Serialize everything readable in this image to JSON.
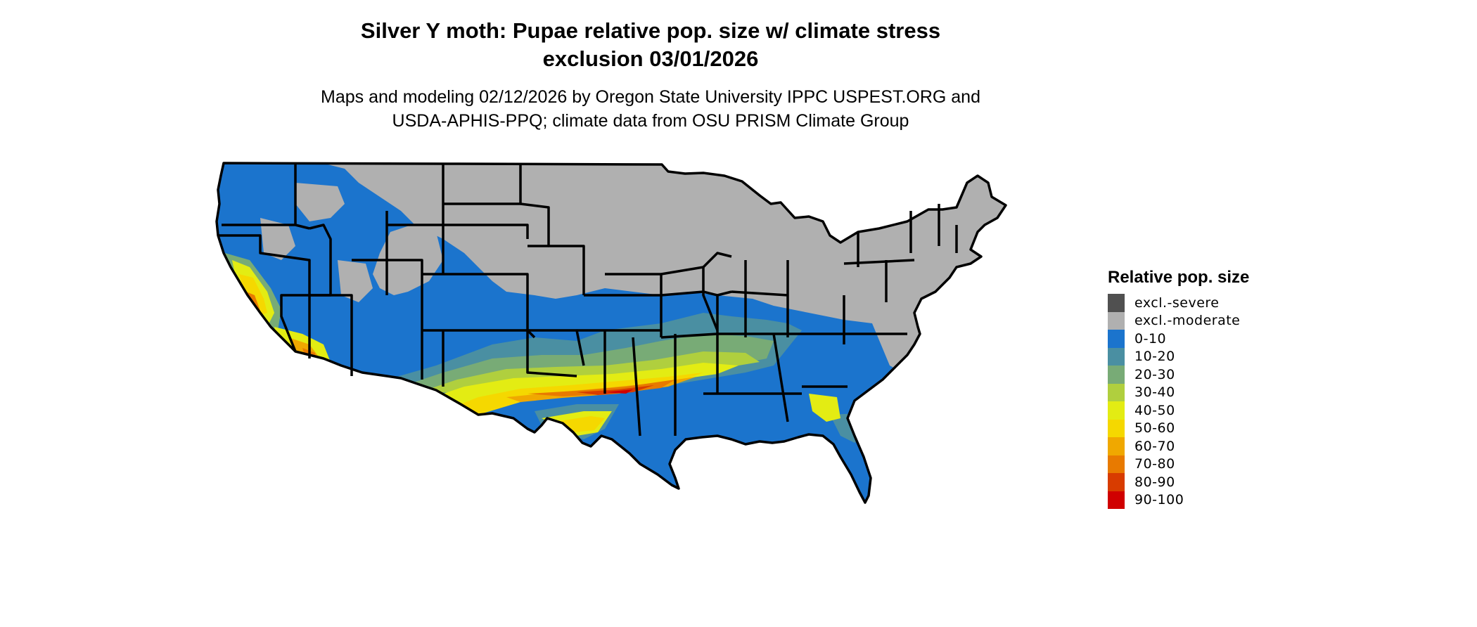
{
  "title": {
    "line1": "Silver Y moth: Pupae relative pop. size w/ climate stress",
    "line2": "exclusion 03/01/2026"
  },
  "subtitle": {
    "line1": "Maps and modeling 02/12/2026 by Oregon State University IPPC USPEST.ORG and",
    "line2": "USDA-APHIS-PPQ; climate data from OSU PRISM Climate Group"
  },
  "legend": {
    "title": "Relative pop. size",
    "items": [
      {
        "label": "excl.-severe",
        "color": "#505050"
      },
      {
        "label": "excl.-moderate",
        "color": "#b0b0b0"
      },
      {
        "label": "0-10",
        "color": "#1b74cd"
      },
      {
        "label": "10-20",
        "color": "#4a8fa2"
      },
      {
        "label": "20-30",
        "color": "#78ab76"
      },
      {
        "label": "30-40",
        "color": "#b0cf3e"
      },
      {
        "label": "40-50",
        "color": "#e3ec13"
      },
      {
        "label": "50-60",
        "color": "#f5d800"
      },
      {
        "label": "60-70",
        "color": "#f0a800"
      },
      {
        "label": "70-80",
        "color": "#e87a00"
      },
      {
        "label": "80-90",
        "color": "#d83c00"
      },
      {
        "label": "90-100",
        "color": "#d00000"
      }
    ]
  }
}
